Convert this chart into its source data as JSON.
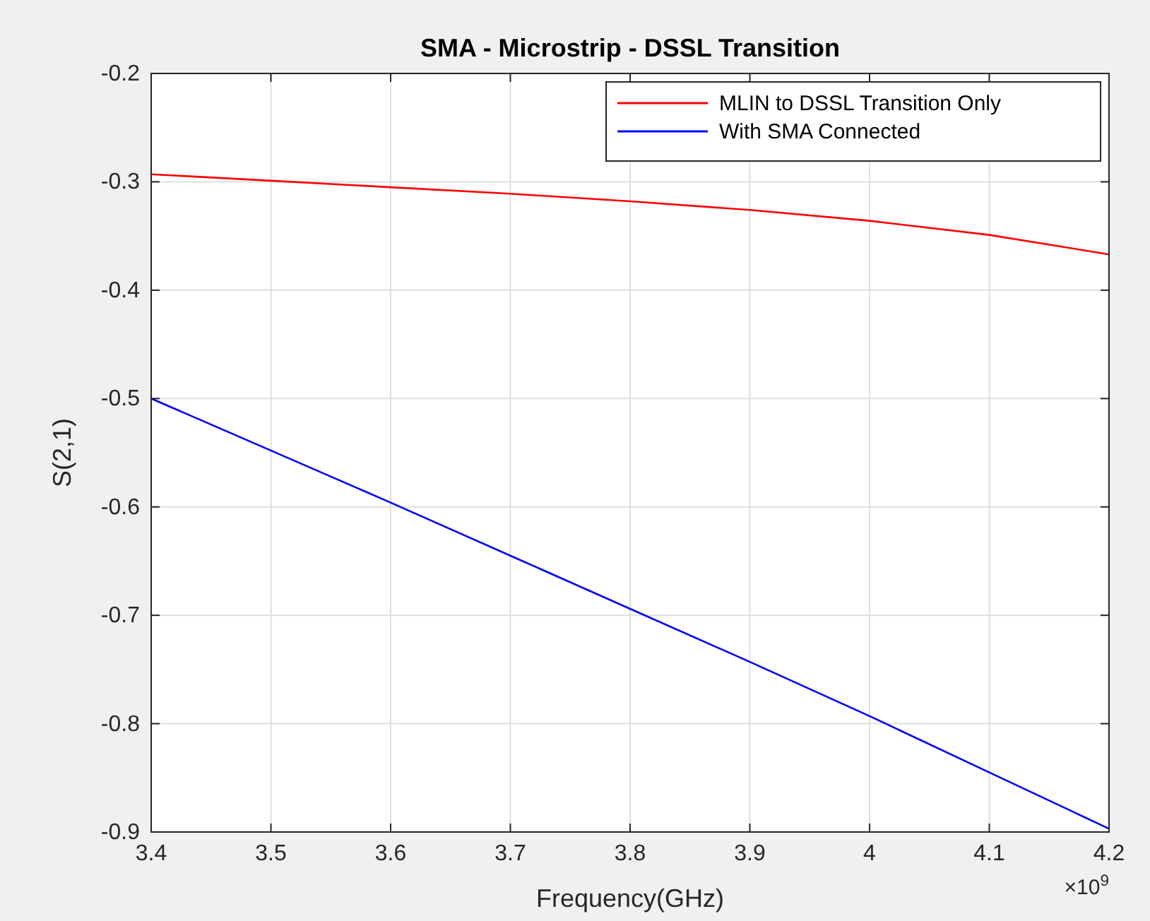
{
  "chart_data": {
    "type": "line",
    "title": "SMA - Microstrip - DSSL Transition",
    "xlabel": "Frequency(GHz)",
    "ylabel": "S(2,1)",
    "x": [
      3.4,
      3.5,
      3.6,
      3.7,
      3.8,
      3.9,
      4.0,
      4.1,
      4.2
    ],
    "series": [
      {
        "name": "MLIN to DSSL Transition Only",
        "color": "#ff0000",
        "values": [
          -0.293,
          -0.299,
          -0.305,
          -0.311,
          -0.318,
          -0.326,
          -0.336,
          -0.349,
          -0.367
        ]
      },
      {
        "name": "With SMA Connected",
        "color": "#0000ff",
        "values": [
          -0.5,
          -0.548,
          -0.596,
          -0.645,
          -0.694,
          -0.743,
          -0.793,
          -0.845,
          -0.897
        ]
      }
    ],
    "xlim": [
      3.4,
      4.2
    ],
    "xticks": [
      3.4,
      3.5,
      3.6,
      3.7,
      3.8,
      3.9,
      4,
      4.1,
      4.2
    ],
    "ylim": [
      -0.9,
      -0.2
    ],
    "yticks": [
      -0.9,
      -0.8,
      -0.7,
      -0.6,
      -0.5,
      -0.4,
      -0.3,
      -0.2
    ],
    "annotations": [
      "×10$^{9}$"
    ],
    "grid": true,
    "legend": "top right",
    "marker": "none",
    "line_style": "solid"
  }
}
